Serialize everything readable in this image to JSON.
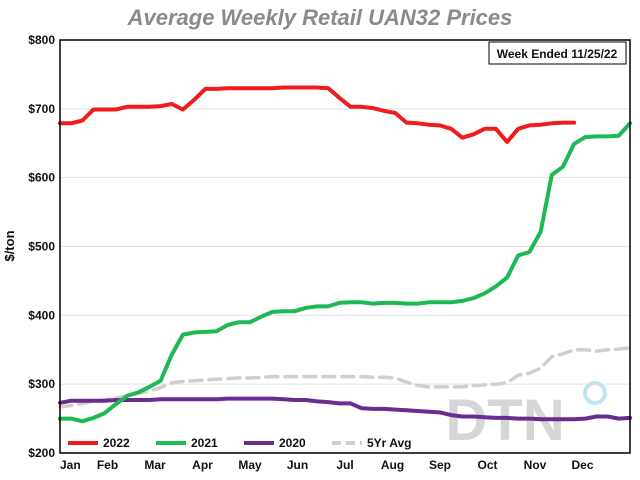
{
  "chart_data": {
    "type": "line",
    "title": "Average Weekly Retail UAN32 Prices",
    "ylabel": "$/ton",
    "xlabel": "",
    "annotation": "Week Ended 11/25/22",
    "watermark": "DTN",
    "x_ticks": [
      "Jan",
      "Feb",
      "Mar",
      "Apr",
      "May",
      "Jun",
      "Jul",
      "Aug",
      "Sep",
      "Oct",
      "Nov",
      "Dec"
    ],
    "y_ticks": [
      200,
      300,
      400,
      500,
      600,
      700,
      800
    ],
    "y_tick_labels": [
      "$200",
      "$300",
      "$400",
      "$500",
      "$600",
      "$700",
      "$800"
    ],
    "ylim": [
      200,
      800
    ],
    "xlim": [
      1,
      52
    ],
    "grid": true,
    "legend_position": "bottom",
    "series": [
      {
        "name": "2022",
        "color": "#ee1c1c",
        "dashed": false,
        "x": [
          1,
          2,
          3,
          4,
          5,
          6,
          7,
          8,
          9,
          10,
          11,
          12,
          13,
          14,
          15,
          16,
          17,
          18,
          19,
          20,
          21,
          22,
          23,
          24,
          25,
          26,
          27,
          28,
          29,
          30,
          31,
          32,
          33,
          34,
          35,
          36,
          37,
          38,
          39,
          40,
          41,
          42,
          43,
          44,
          45,
          46,
          47
        ],
        "values": [
          679,
          679,
          683,
          699,
          699,
          699,
          703,
          703,
          703,
          704,
          707,
          699,
          713,
          729,
          729,
          730,
          730,
          730,
          730,
          730,
          731,
          731,
          731,
          731,
          730,
          716,
          703,
          703,
          701,
          697,
          694,
          680,
          679,
          677,
          676,
          671,
          658,
          663,
          671,
          671,
          652,
          671,
          676,
          677,
          679,
          680,
          680
        ]
      },
      {
        "name": "2021",
        "color": "#1db954",
        "dashed": false,
        "x": [
          1,
          2,
          3,
          4,
          5,
          6,
          7,
          8,
          9,
          10,
          11,
          12,
          13,
          14,
          15,
          16,
          17,
          18,
          19,
          20,
          21,
          22,
          23,
          24,
          25,
          26,
          27,
          28,
          29,
          30,
          31,
          32,
          33,
          34,
          35,
          36,
          37,
          38,
          39,
          40,
          41,
          42,
          43,
          44,
          45,
          46,
          47,
          48,
          49,
          50,
          51,
          52
        ],
        "values": [
          250,
          250,
          246,
          251,
          258,
          271,
          283,
          288,
          296,
          305,
          343,
          372,
          375,
          376,
          377,
          386,
          390,
          390,
          398,
          405,
          406,
          406,
          411,
          413,
          413,
          418,
          419,
          419,
          417,
          418,
          418,
          417,
          417,
          419,
          419,
          419,
          421,
          425,
          432,
          442,
          455,
          487,
          492,
          521,
          604,
          616,
          649,
          659,
          660,
          660,
          661,
          679
        ]
      },
      {
        "name": "2020",
        "color": "#6a2c91",
        "dashed": false,
        "x": [
          1,
          2,
          3,
          4,
          5,
          6,
          7,
          8,
          9,
          10,
          11,
          12,
          13,
          14,
          15,
          16,
          17,
          18,
          19,
          20,
          21,
          22,
          23,
          24,
          25,
          26,
          27,
          28,
          29,
          30,
          31,
          32,
          33,
          34,
          35,
          36,
          37,
          38,
          39,
          40,
          41,
          42,
          43,
          44,
          45,
          46,
          47,
          48,
          49,
          50,
          51,
          52
        ],
        "values": [
          273,
          276,
          276,
          276,
          276,
          277,
          277,
          277,
          277,
          278,
          278,
          278,
          278,
          278,
          278,
          279,
          279,
          279,
          279,
          279,
          278,
          277,
          277,
          275,
          274,
          272,
          272,
          265,
          264,
          264,
          263,
          262,
          261,
          260,
          259,
          255,
          253,
          253,
          252,
          251,
          251,
          250,
          250,
          249,
          249,
          249,
          249,
          250,
          253,
          253,
          250,
          251
        ]
      },
      {
        "name": "5Yr Avg",
        "color": "#cfcfcf",
        "dashed": true,
        "x": [
          1,
          2,
          3,
          4,
          5,
          6,
          7,
          8,
          9,
          10,
          11,
          12,
          13,
          14,
          15,
          16,
          17,
          18,
          19,
          20,
          21,
          22,
          23,
          24,
          25,
          26,
          27,
          28,
          29,
          30,
          31,
          32,
          33,
          34,
          35,
          36,
          37,
          38,
          39,
          40,
          41,
          42,
          43,
          44,
          45,
          46,
          47,
          48,
          49,
          50,
          51,
          52
        ],
        "values": [
          267,
          269,
          272,
          275,
          277,
          280,
          283,
          287,
          290,
          295,
          302,
          304,
          305,
          306,
          307,
          308,
          309,
          309,
          310,
          311,
          311,
          311,
          311,
          311,
          311,
          311,
          311,
          311,
          310,
          310,
          309,
          303,
          298,
          296,
          296,
          296,
          296,
          298,
          299,
          300,
          302,
          313,
          316,
          323,
          340,
          344,
          350,
          350,
          348,
          350,
          351,
          353
        ]
      }
    ]
  }
}
